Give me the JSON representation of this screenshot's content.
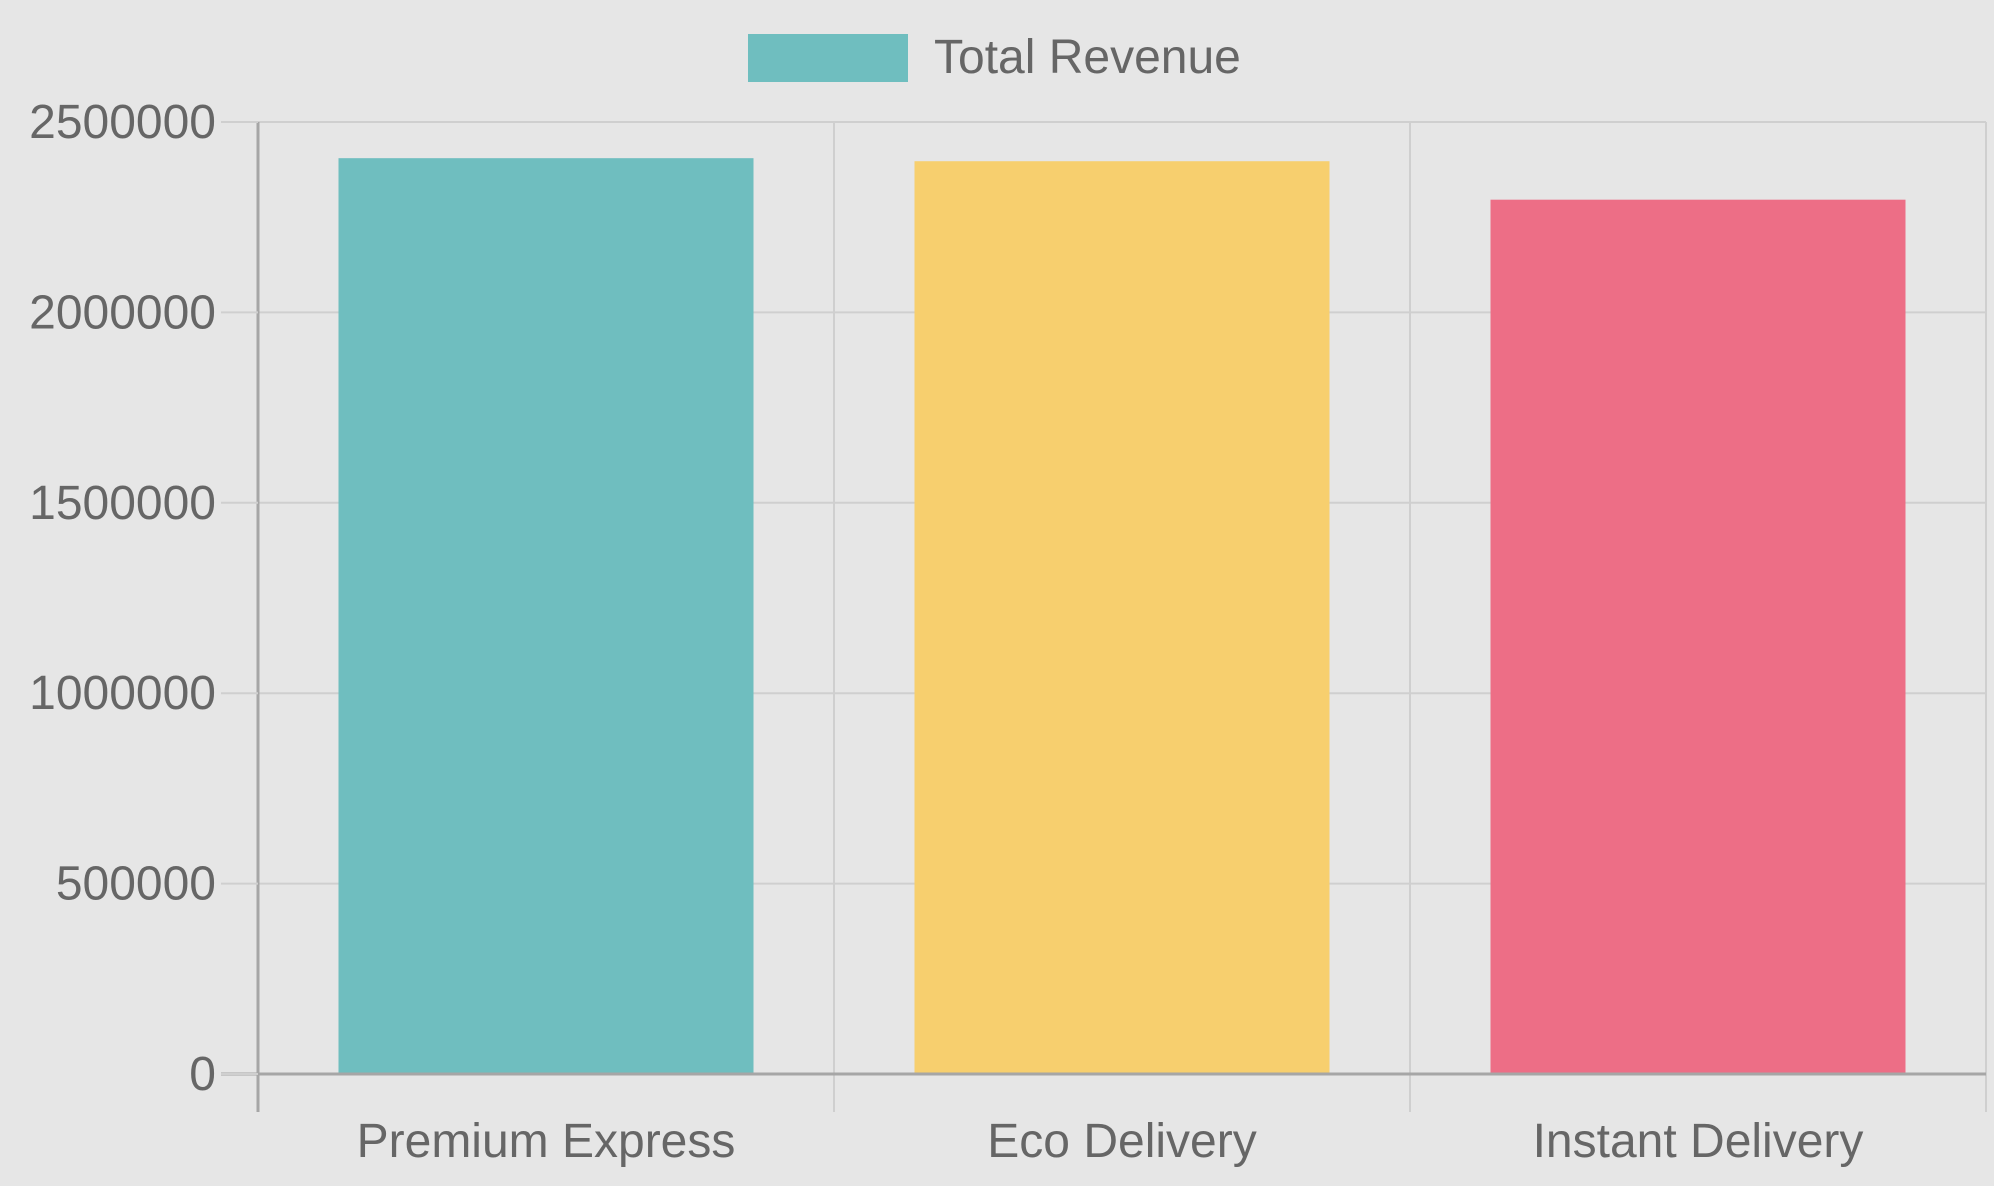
{
  "chart_data": {
    "type": "bar",
    "categories": [
      "Premium Express",
      "Eco Delivery",
      "Instant Delivery"
    ],
    "series": [
      {
        "name": "Total Revenue",
        "values": [
          2405000,
          2397000,
          2296000
        ]
      }
    ],
    "ylim": [
      0,
      2500000
    ],
    "yticks": [
      0,
      500000,
      1000000,
      1500000,
      2000000,
      2500000
    ],
    "ytick_labels": [
      "0",
      "500000",
      "1000000",
      "1500000",
      "2000000",
      "2500000"
    ],
    "grid": true,
    "legend_position": "top",
    "bar_colors": [
      "#6fbebf",
      "#f7cf6e",
      "#ed6e86"
    ],
    "legend_swatch_color": "#6fbebf"
  }
}
